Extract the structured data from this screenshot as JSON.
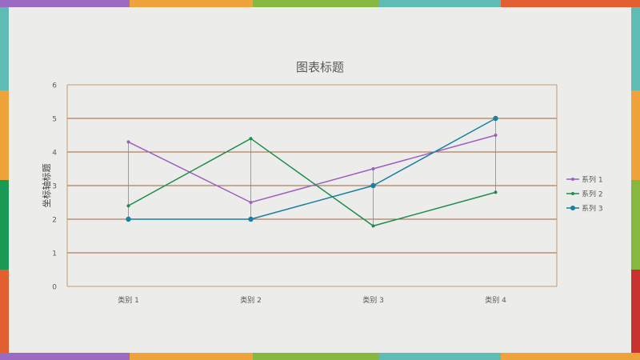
{
  "chart_data": {
    "type": "line",
    "title": "图表标题",
    "ylabel": "坐标轴标题",
    "xlabel": "",
    "categories": [
      "类别 1",
      "类别 2",
      "类别 3",
      "类别 4"
    ],
    "ylim": [
      0,
      6
    ],
    "yticks": [
      0,
      1,
      2,
      3,
      4,
      5,
      6
    ],
    "grid": true,
    "high_low_lines": true,
    "legend_position": "right",
    "series": [
      {
        "name": "系列 1",
        "values": [
          4.3,
          2.5,
          3.5,
          4.5
        ],
        "color": "#9b5fc0",
        "marker": "small"
      },
      {
        "name": "系列 2",
        "values": [
          2.4,
          4.4,
          1.8,
          2.8
        ],
        "color": "#1e8c4c",
        "marker": "small"
      },
      {
        "name": "系列 3",
        "values": [
          2.0,
          2.0,
          3.0,
          5.0
        ],
        "color": "#1a7fa0",
        "marker": "large"
      }
    ]
  },
  "theme": {
    "background": "#ececea",
    "grid_color": "#a0653a",
    "axis_color": "#c89a6a",
    "text_color": "#595959",
    "frame_colors": [
      "#9b6bc3",
      "#eea33b",
      "#86b83f",
      "#5fbcb4",
      "#e35f32",
      "#1b9a56",
      "#c8322f"
    ]
  }
}
